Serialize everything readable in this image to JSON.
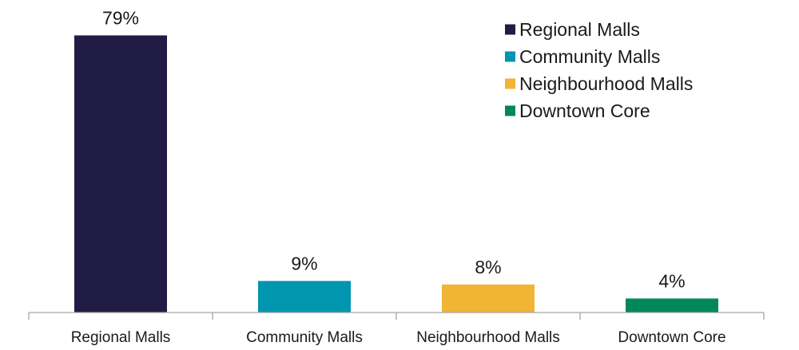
{
  "chart_data": {
    "type": "bar",
    "categories": [
      "Regional Malls",
      "Community Malls",
      "Neighbourhood Malls",
      "Downtown Core"
    ],
    "values": [
      79,
      9,
      8,
      4
    ],
    "value_labels": [
      "79%",
      "9%",
      "8%",
      "4%"
    ],
    "colors": [
      "#201c45",
      "#0096b0",
      "#f0b534",
      "#00875a"
    ],
    "unit": "%",
    "ylim": [
      0,
      100
    ],
    "grid": false,
    "legend": {
      "position": "top-right",
      "entries": [
        "Regional Malls",
        "Community Malls",
        "Neighbourhood Malls",
        "Downtown Core"
      ]
    },
    "title": "",
    "xlabel": "",
    "ylabel": "",
    "axis_color": "#a6a6a6"
  }
}
